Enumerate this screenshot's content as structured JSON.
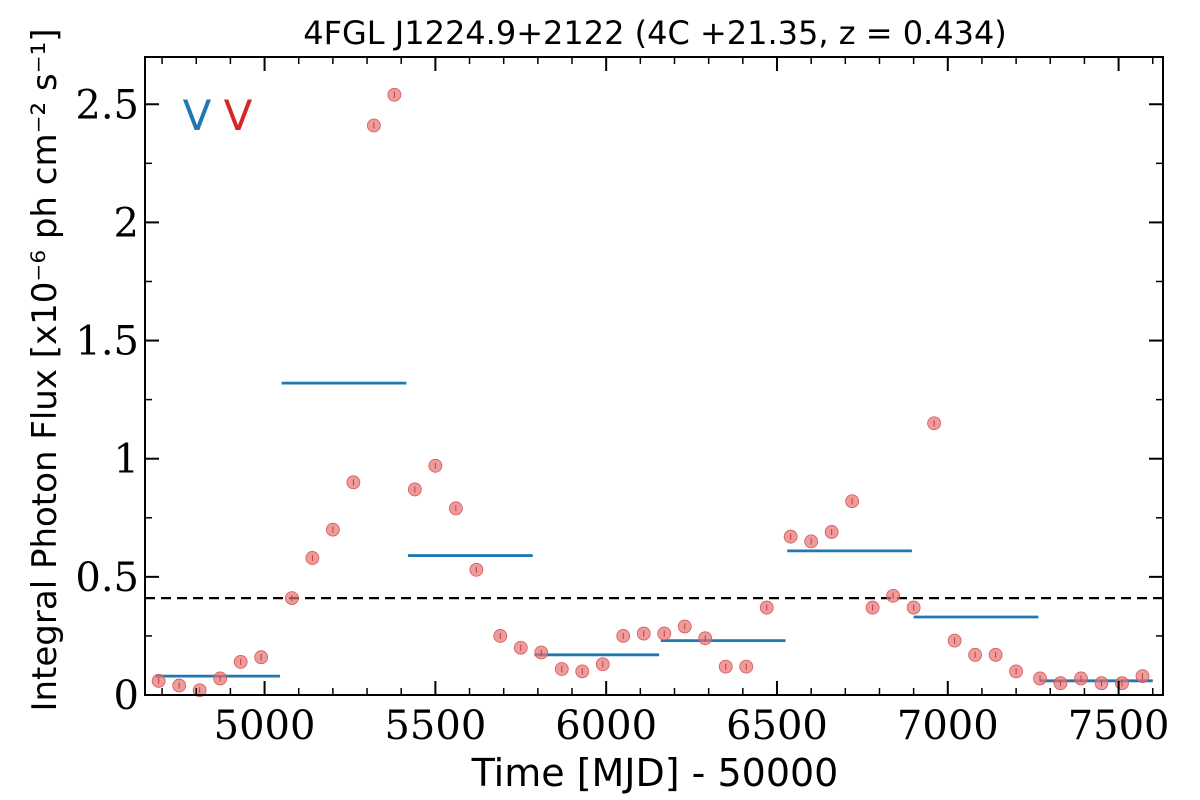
{
  "chart_data": {
    "type": "scatter",
    "title": "4FGL J1224.9+2122 (4C +21.35, z = 0.434)",
    "xlabel": "Time [MJD] - 50000",
    "ylabel": "Integral Photon Flux [x10⁻⁶ ph cm⁻² s⁻¹]",
    "xlim": [
      4650,
      7630
    ],
    "ylim": [
      0,
      2.7
    ],
    "x_ticks": [
      5000,
      5500,
      6000,
      6500,
      7000,
      7500
    ],
    "x_tick_labels": [
      "5000",
      "5500",
      "6000",
      "6500",
      "7000",
      "7500"
    ],
    "y_ticks": [
      0,
      0.5,
      1,
      1.5,
      2,
      2.5
    ],
    "y_tick_labels": [
      "0",
      "0.5",
      "1",
      "1.5",
      "2",
      "2.5"
    ],
    "reference_line": {
      "y": 0.41,
      "style": "dashed",
      "color": "#000000"
    },
    "markers": [
      {
        "text": "V",
        "color": "#1f77b4"
      },
      {
        "text": "V",
        "color": "#d62728"
      }
    ],
    "points_color": "#e87070",
    "bins_color": "#1f77b4",
    "points": [
      {
        "x": 4690,
        "y": 0.06
      },
      {
        "x": 4750,
        "y": 0.04
      },
      {
        "x": 4810,
        "y": 0.02
      },
      {
        "x": 4870,
        "y": 0.07
      },
      {
        "x": 4930,
        "y": 0.14
      },
      {
        "x": 4990,
        "y": 0.16
      },
      {
        "x": 5080,
        "y": 0.41
      },
      {
        "x": 5140,
        "y": 0.58
      },
      {
        "x": 5200,
        "y": 0.7
      },
      {
        "x": 5260,
        "y": 0.9
      },
      {
        "x": 5320,
        "y": 2.41
      },
      {
        "x": 5380,
        "y": 2.54
      },
      {
        "x": 5440,
        "y": 0.87
      },
      {
        "x": 5500,
        "y": 0.97
      },
      {
        "x": 5560,
        "y": 0.79
      },
      {
        "x": 5620,
        "y": 0.53
      },
      {
        "x": 5690,
        "y": 0.25
      },
      {
        "x": 5750,
        "y": 0.2
      },
      {
        "x": 5810,
        "y": 0.18
      },
      {
        "x": 5870,
        "y": 0.11
      },
      {
        "x": 5930,
        "y": 0.1
      },
      {
        "x": 5990,
        "y": 0.13
      },
      {
        "x": 6050,
        "y": 0.25
      },
      {
        "x": 6110,
        "y": 0.26
      },
      {
        "x": 6170,
        "y": 0.26
      },
      {
        "x": 6230,
        "y": 0.29
      },
      {
        "x": 6290,
        "y": 0.24
      },
      {
        "x": 6350,
        "y": 0.12
      },
      {
        "x": 6410,
        "y": 0.12
      },
      {
        "x": 6470,
        "y": 0.37
      },
      {
        "x": 6540,
        "y": 0.67
      },
      {
        "x": 6600,
        "y": 0.65
      },
      {
        "x": 6660,
        "y": 0.69
      },
      {
        "x": 6720,
        "y": 0.82
      },
      {
        "x": 6780,
        "y": 0.37
      },
      {
        "x": 6840,
        "y": 0.42
      },
      {
        "x": 6900,
        "y": 0.37
      },
      {
        "x": 6960,
        "y": 1.15
      },
      {
        "x": 7020,
        "y": 0.23
      },
      {
        "x": 7080,
        "y": 0.17
      },
      {
        "x": 7140,
        "y": 0.17
      },
      {
        "x": 7200,
        "y": 0.1
      },
      {
        "x": 7270,
        "y": 0.07
      },
      {
        "x": 7330,
        "y": 0.05
      },
      {
        "x": 7390,
        "y": 0.07
      },
      {
        "x": 7450,
        "y": 0.05
      },
      {
        "x": 7510,
        "y": 0.05
      },
      {
        "x": 7570,
        "y": 0.08
      }
    ],
    "bins": [
      {
        "x_start": 4680,
        "x_end": 5045,
        "y": 0.08
      },
      {
        "x_start": 5050,
        "x_end": 5415,
        "y": 1.32
      },
      {
        "x_start": 5420,
        "x_end": 5785,
        "y": 0.59
      },
      {
        "x_start": 5790,
        "x_end": 6155,
        "y": 0.17
      },
      {
        "x_start": 6160,
        "x_end": 6525,
        "y": 0.23
      },
      {
        "x_start": 6530,
        "x_end": 6895,
        "y": 0.61
      },
      {
        "x_start": 6900,
        "x_end": 7265,
        "y": 0.33
      },
      {
        "x_start": 7270,
        "x_end": 7600,
        "y": 0.06
      }
    ]
  }
}
